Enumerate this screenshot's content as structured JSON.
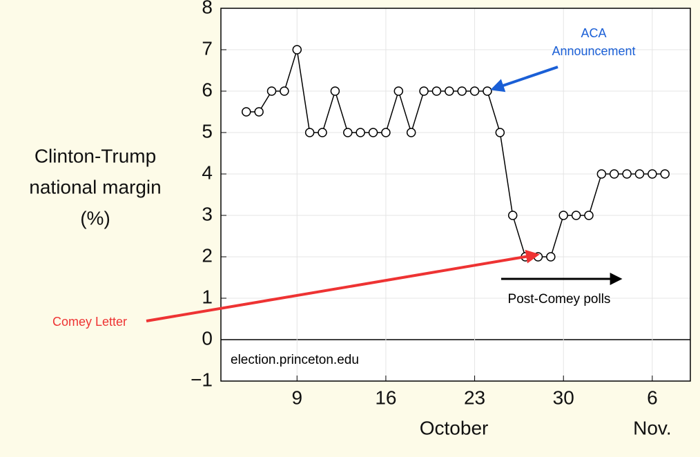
{
  "chart_data": {
    "type": "line",
    "y_label": [
      "Clinton-Trump",
      "national margin",
      "(%)"
    ],
    "x": [
      5,
      6,
      7,
      8,
      9,
      10,
      11,
      12,
      13,
      14,
      15,
      16,
      17,
      18,
      19,
      20,
      21,
      22,
      23,
      24,
      25,
      26,
      27,
      28,
      29,
      30,
      31,
      32,
      33,
      34,
      35,
      36,
      37,
      38
    ],
    "series": [
      {
        "color": "#000000",
        "values": [
          5.5,
          5.5,
          6,
          6,
          7,
          5,
          5,
          6,
          5,
          5,
          5,
          5,
          6,
          5,
          6,
          6,
          6,
          6,
          6,
          6,
          5,
          3,
          2,
          2,
          2,
          3,
          3,
          3,
          4,
          4,
          4,
          4,
          4,
          4
        ]
      }
    ],
    "xlim": [
      3,
      40
    ],
    "xticks": [
      9,
      16,
      23,
      30,
      {
        "value": 37,
        "label": "6"
      }
    ],
    "month_labels": [
      "October",
      "Nov."
    ],
    "ylim": [
      -1,
      8
    ],
    "yticks": [
      {
        "value": -1,
        "label": "−1"
      },
      0,
      1,
      2,
      3,
      4,
      5,
      6,
      7,
      8
    ],
    "grid": true,
    "annotations": [
      "ACA Announcement",
      "Comey Letter",
      "Post-Comey polls",
      "election.princeton.edu"
    ],
    "annotation_colors": [
      "#1a5fd6",
      "#ee3333",
      "#000000",
      "#000000"
    ]
  }
}
